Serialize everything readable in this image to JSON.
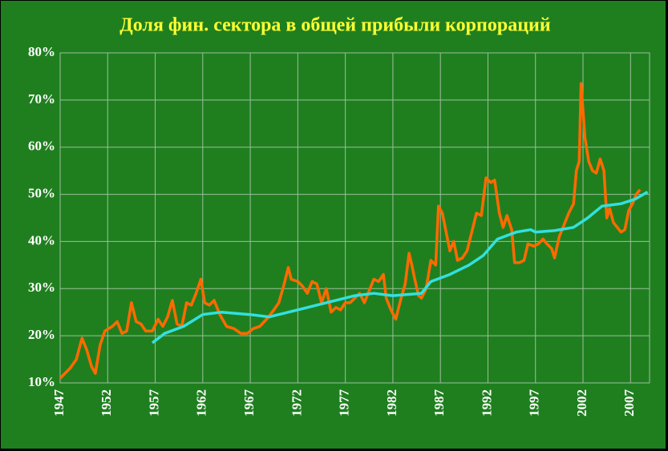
{
  "chart_data": {
    "type": "line",
    "title": "Доля фин. сектора в общей прибыли корпораций",
    "xlim": [
      1947,
      2009
    ],
    "xticks": [
      1947,
      1952,
      1957,
      1962,
      1967,
      1972,
      1977,
      1982,
      1987,
      1992,
      1997,
      2002,
      2007
    ],
    "ylim": [
      10,
      80
    ],
    "yticks": [
      {
        "value": 10,
        "label": "10%"
      },
      {
        "value": 20,
        "label": "20%"
      },
      {
        "value": 30,
        "label": "30%"
      },
      {
        "value": 40,
        "label": "40%"
      },
      {
        "value": 50,
        "label": "50%"
      },
      {
        "value": 60,
        "label": "60%"
      },
      {
        "value": 70,
        "label": "70%"
      },
      {
        "value": 80,
        "label": "80%"
      }
    ],
    "grid": true,
    "series": [
      {
        "color": "#ff6a00",
        "x": [
          1947,
          1948,
          1948.7,
          1949.3,
          1949.8,
          1950.3,
          1950.7,
          1951.2,
          1951.7,
          1952.5,
          1953,
          1953.5,
          1954,
          1954.5,
          1955,
          1955.5,
          1956,
          1956.7,
          1957.3,
          1957.8,
          1958.3,
          1958.8,
          1959.3,
          1959.8,
          1960.3,
          1960.8,
          1961.3,
          1961.8,
          1962.2,
          1962.7,
          1963.2,
          1963.8,
          1964.5,
          1965.3,
          1966,
          1966.7,
          1967.3,
          1968,
          1968.7,
          1969.3,
          1970,
          1970.5,
          1971,
          1971.3,
          1972,
          1972.5,
          1973,
          1973.5,
          1974,
          1974.5,
          1975,
          1975.5,
          1976,
          1976.5,
          1977,
          1977.5,
          1978,
          1978.5,
          1979,
          1979.5,
          1980,
          1980.5,
          1981,
          1981.3,
          1981.8,
          1982.3,
          1982.8,
          1983.3,
          1983.7,
          1984,
          1984.3,
          1984.7,
          1985,
          1985.5,
          1986,
          1986.5,
          1986.8,
          1987.2,
          1987.6,
          1988,
          1988.4,
          1988.8,
          1989.3,
          1989.8,
          1990.3,
          1990.8,
          1991.3,
          1991.8,
          1992.3,
          1992.7,
          1993.2,
          1993.6,
          1994,
          1994.5,
          1994.8,
          1995.3,
          1995.8,
          1996.2,
          1996.8,
          1997.3,
          1997.8,
          1998.2,
          1998.7,
          1999,
          1999.5,
          2000,
          2000.5,
          2001,
          2001.3,
          2001.6,
          2001.8,
          2002.2,
          2002.6,
          2003,
          2003.4,
          2003.8,
          2004.2,
          2004.5,
          2004.8,
          2005.2,
          2005.6,
          2006,
          2006.4,
          2006.8,
          2007.2,
          2007.6,
          2008
        ],
        "values": [
          11,
          13,
          15,
          19.5,
          17,
          13.5,
          12,
          18,
          21,
          22,
          23,
          20.5,
          21,
          27,
          23,
          22.5,
          21,
          21,
          23.5,
          22,
          24,
          27.5,
          22.5,
          22,
          27,
          26.5,
          29,
          32,
          27,
          26.5,
          27.5,
          24.5,
          22,
          21.5,
          20.5,
          20.5,
          21.5,
          22,
          23.5,
          25,
          27,
          30.5,
          34.5,
          32,
          31.5,
          30.5,
          29,
          31.5,
          31,
          27,
          30,
          25,
          26,
          25.5,
          27,
          27,
          28,
          29,
          27,
          29.5,
          32,
          31.5,
          33,
          28,
          25.5,
          23.5,
          27.5,
          31,
          37.5,
          35,
          32,
          28.5,
          28,
          30,
          36,
          35,
          47.5,
          46,
          42,
          38,
          40,
          36,
          36.5,
          38,
          42,
          46,
          45.5,
          53.5,
          52.5,
          53,
          46,
          43,
          45.5,
          42.5,
          35.5,
          35.5,
          36,
          39.5,
          39,
          39.5,
          40.5,
          39.5,
          38.5,
          36.5,
          41,
          43.5,
          46,
          48,
          55,
          57,
          73.5,
          62,
          57,
          55,
          54.5,
          57.5,
          55,
          45,
          47,
          44,
          43,
          42,
          42.5,
          46.5,
          48,
          50,
          51
        ]
      },
      {
        "color": "#33e0e0",
        "x": [
          1956.7,
          1958,
          1960,
          1962,
          1964,
          1967,
          1969,
          1972,
          1975,
          1978,
          1980,
          1982,
          1985,
          1986,
          1988,
          1990,
          1991.5,
          1993,
          1995,
          1996.5,
          1997,
          1999,
          2001,
          2002.5,
          2004,
          2006,
          2007.5,
          2008.8
        ],
        "values": [
          18.5,
          20.5,
          22,
          24.5,
          25,
          24.5,
          24,
          25.5,
          27,
          28.5,
          29,
          28.5,
          29,
          31.5,
          33,
          35,
          37,
          40.5,
          42,
          42.5,
          42,
          42.3,
          43,
          45,
          47.5,
          48,
          49,
          50.5
        ]
      }
    ]
  }
}
